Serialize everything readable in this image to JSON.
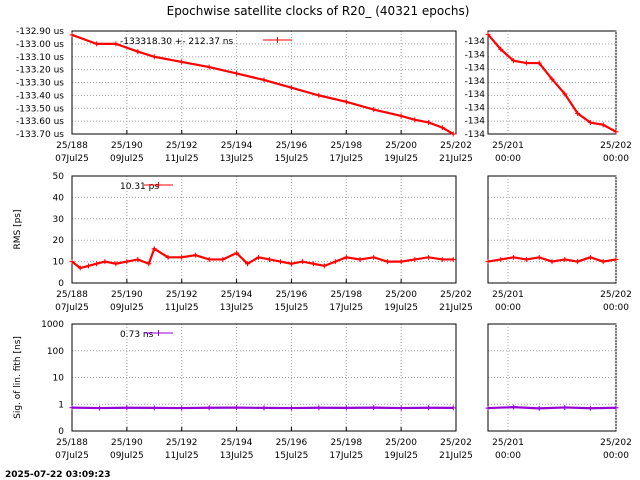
{
  "title": "Epochwise satellite clocks of R20_  (40321 epochs)",
  "timestamp": "2025-07-22 03:09:23",
  "colors": {
    "red": "#ff0000",
    "purple": "#9400d3",
    "grid": "#a0a0a0"
  },
  "chart_data": [
    {
      "type": "line",
      "name": "clock",
      "ylabel": "",
      "legend": "-133318.30 +-    212.37 ns",
      "yticks_left": [
        "-132.90 us",
        "-133.00 us",
        "-133.10 us",
        "-133.20 us",
        "-133.30 us",
        "-133.40 us",
        "-133.50 us",
        "-133.60 us",
        "-133.70 us"
      ],
      "yticks_right": [
        "-134",
        "-134",
        "-134",
        "-134",
        "-134",
        "-134",
        "-134",
        "-134"
      ],
      "ylim": [
        -133.7,
        -132.9
      ],
      "xticks_left": [
        [
          "25/188",
          "07Jul25"
        ],
        [
          "25/190",
          "09Jul25"
        ],
        [
          "25/192",
          "11Jul25"
        ],
        [
          "25/194",
          "13Jul25"
        ],
        [
          "25/196",
          "15Jul25"
        ],
        [
          "25/198",
          "17Jul25"
        ],
        [
          "25/200",
          "19Jul25"
        ],
        [
          "25/202",
          "21Jul25"
        ]
      ],
      "xticks_right": [
        [
          "25/201",
          "00:00"
        ],
        [
          "25/202",
          "00:00"
        ]
      ],
      "series_left": {
        "x": [
          188.0,
          188.9,
          189.6,
          190.4,
          191.0,
          192.0,
          193.0,
          194.0,
          195.0,
          196.0,
          197.0,
          198.0,
          199.0,
          200.0,
          200.5,
          201.0,
          201.5,
          201.9
        ],
        "y": [
          -132.93,
          -133.0,
          -133.0,
          -133.06,
          -133.1,
          -133.14,
          -133.18,
          -133.23,
          -133.28,
          -133.34,
          -133.4,
          -133.45,
          -133.51,
          -133.56,
          -133.59,
          -133.61,
          -133.65,
          -133.7
        ]
      },
      "series_right": {
        "x": [
          201.0,
          201.1,
          201.2,
          201.3,
          201.4,
          201.5,
          201.6,
          201.7,
          201.8,
          201.9,
          202.0
        ],
        "y": [
          -133.93,
          -134.06,
          -134.16,
          -134.18,
          -134.18,
          -134.32,
          -134.45,
          -134.62,
          -134.7,
          -134.72,
          -134.78
        ]
      },
      "right_ylim": [
        -134.8,
        -133.9
      ]
    },
    {
      "type": "line",
      "name": "rms",
      "ylabel": "RMS [ps]",
      "legend": "10.31 ps",
      "yticks": [
        "0",
        "10",
        "20",
        "30",
        "40",
        "50"
      ],
      "ylim": [
        0,
        50
      ],
      "xticks_left": [
        [
          "25/188",
          "07Jul25"
        ],
        [
          "25/190",
          "09Jul25"
        ],
        [
          "25/192",
          "11Jul25"
        ],
        [
          "25/194",
          "13Jul25"
        ],
        [
          "25/196",
          "15Jul25"
        ],
        [
          "25/198",
          "17Jul25"
        ],
        [
          "25/200",
          "19Jul25"
        ],
        [
          "25/202",
          "21Jul25"
        ]
      ],
      "xticks_right": [
        [
          "25/201",
          "00:00"
        ],
        [
          "25/202",
          "00:00"
        ]
      ],
      "series_left": {
        "x": [
          188.0,
          188.3,
          188.6,
          188.9,
          189.2,
          189.6,
          190.0,
          190.4,
          190.8,
          191.0,
          191.5,
          192.0,
          192.5,
          193.0,
          193.5,
          194.0,
          194.4,
          194.8,
          195.2,
          195.6,
          196.0,
          196.4,
          196.8,
          197.2,
          197.6,
          198.0,
          198.5,
          199.0,
          199.5,
          200.0,
          200.5,
          201.0,
          201.5,
          201.9
        ],
        "y": [
          10,
          7,
          8,
          9,
          10,
          9,
          10,
          11,
          9,
          16,
          12,
          12,
          13,
          11,
          11,
          14,
          9,
          12,
          11,
          10,
          9,
          10,
          9,
          8,
          10,
          12,
          11,
          12,
          10,
          10,
          11,
          12,
          11,
          11
        ]
      },
      "series_right": {
        "x": [
          201.0,
          201.1,
          201.2,
          201.3,
          201.4,
          201.5,
          201.6,
          201.7,
          201.8,
          201.9,
          202.0
        ],
        "y": [
          10,
          11,
          12,
          11,
          12,
          10,
          11,
          10,
          12,
          10,
          11
        ]
      }
    },
    {
      "type": "line",
      "name": "sigma",
      "ylabel": "Sig. of lin. fit­h [ns]",
      "ylabel_text": "Sig. of lin. fith [ns]",
      "legend": "0.73 ns",
      "log_scale": true,
      "yticks": [
        "0",
        "1",
        "10",
        "100",
        "1000"
      ],
      "xticks_left": [
        [
          "25/188",
          "07Jul25"
        ],
        [
          "25/190",
          "09Jul25"
        ],
        [
          "25/192",
          "11Jul25"
        ],
        [
          "25/194",
          "13Jul25"
        ],
        [
          "25/196",
          "15Jul25"
        ],
        [
          "25/198",
          "17Jul25"
        ],
        [
          "25/200",
          "19Jul25"
        ],
        [
          "25/202",
          "21Jul25"
        ]
      ],
      "xticks_right": [
        [
          "25/201",
          "00:00"
        ],
        [
          "25/202",
          "00:00"
        ]
      ],
      "series_left": {
        "x": [
          188.0,
          189.0,
          190.0,
          191.0,
          192.0,
          193.0,
          194.0,
          195.0,
          196.0,
          197.0,
          198.0,
          199.0,
          200.0,
          201.0,
          201.9
        ],
        "y": [
          0.75,
          0.72,
          0.74,
          0.73,
          0.72,
          0.74,
          0.75,
          0.73,
          0.72,
          0.74,
          0.73,
          0.75,
          0.72,
          0.74,
          0.73
        ]
      },
      "series_right": {
        "x": [
          201.0,
          201.2,
          201.4,
          201.6,
          201.8,
          202.0
        ],
        "y": [
          0.72,
          0.78,
          0.7,
          0.76,
          0.71,
          0.74
        ]
      }
    }
  ]
}
